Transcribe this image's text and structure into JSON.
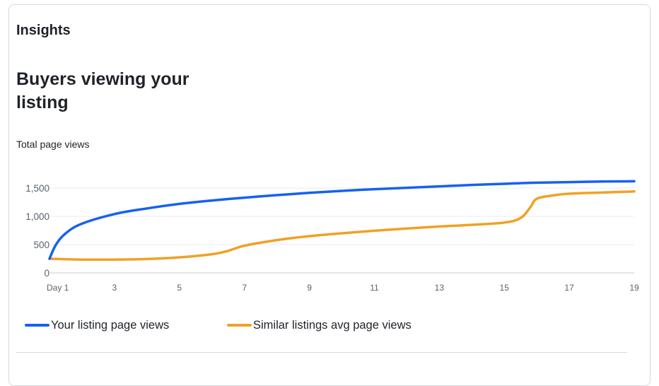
{
  "card": {
    "section_title": "Insights",
    "chart_title": "Buyers viewing your listing",
    "metric_label": "Total page views"
  },
  "colors": {
    "your_listing": "#1760f2",
    "similar_listings": "#f0a126",
    "gridline": "#e9ebee",
    "axis_text": "#5a626c"
  },
  "chart_data": {
    "type": "line",
    "title": "Buyers viewing your listing",
    "ylabel": "Total page views",
    "xlabel": "",
    "ylim": [
      0,
      1750
    ],
    "yticks": [
      0,
      500,
      1000,
      1500
    ],
    "ytick_labels": [
      "0",
      "500",
      "1,000",
      "1,500"
    ],
    "xlim": [
      1,
      19
    ],
    "xticks": [
      1,
      3,
      5,
      7,
      9,
      11,
      13,
      15,
      17,
      19
    ],
    "xtick_labels": [
      "Day 1",
      "3",
      "5",
      "7",
      "9",
      "11",
      "13",
      "15",
      "17",
      "19"
    ],
    "grid": true,
    "legend": "bottom-left",
    "series": [
      {
        "name": "Your listing page views",
        "color": "#1760f2",
        "x": [
          1,
          1.2,
          1.5,
          2,
          3,
          4,
          5,
          6,
          7,
          8,
          9,
          10,
          11,
          12,
          13,
          14,
          15,
          16,
          17,
          18,
          19
        ],
        "y": [
          250,
          500,
          700,
          870,
          1040,
          1140,
          1220,
          1280,
          1330,
          1375,
          1415,
          1450,
          1480,
          1505,
          1530,
          1555,
          1575,
          1595,
          1605,
          1615,
          1620
        ]
      },
      {
        "name": "Similar listings avg page views",
        "color": "#f0a126",
        "x": [
          1,
          2,
          3,
          4,
          5,
          6,
          6.5,
          7,
          8,
          9,
          10,
          11,
          12,
          13,
          14,
          15,
          15.5,
          15.8,
          16,
          16.5,
          17,
          18,
          19
        ],
        "y": [
          250,
          235,
          235,
          245,
          275,
          330,
          390,
          480,
          580,
          650,
          700,
          745,
          785,
          820,
          850,
          890,
          970,
          1160,
          1310,
          1370,
          1400,
          1420,
          1440
        ]
      }
    ]
  }
}
